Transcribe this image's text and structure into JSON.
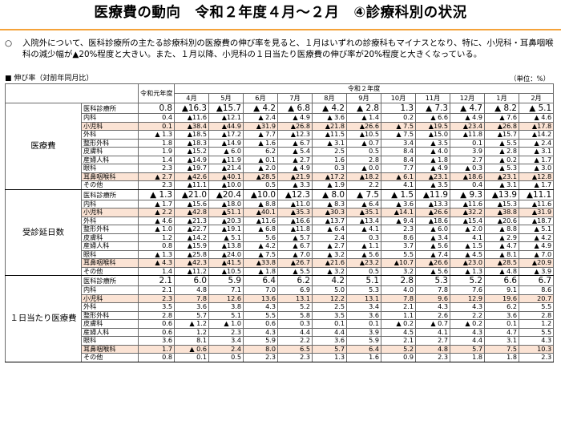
{
  "title": "医療費の動向　令和２年度４月～２月　④診療科別の状況",
  "note": {
    "bullet": "○",
    "text": "入院外について、医科診療所の主たる診療科別の医療費の伸び率を見ると、１月はいずれの診療科もマイナスとなり、特に、小児科・耳鼻咽喉科の減少幅が▲20%程度と大きい。また、１月以降、小児科の１日当たり医療費の伸び率が20%程度と大きくなっている。"
  },
  "caption": "■ 伸び率（対前年同月比）",
  "unit": "（単位：%）",
  "header": {
    "prev_year": "令和元年度",
    "cur_year": "令和２年度",
    "months": [
      "4月",
      "5月",
      "6月",
      "7月",
      "8月",
      "9月",
      "10月",
      "11月",
      "12月",
      "1月",
      "2月"
    ]
  },
  "groups": [
    {
      "label": "医療費",
      "rows": [
        {
          "name": "医科診療所",
          "total": true,
          "hl": false,
          "vals": [
            "0.8",
            "▲16.3",
            "▲15.7",
            "▲ 4.2",
            "▲ 6.8",
            "▲ 4.2",
            "▲ 2.8",
            "1.3",
            "▲ 7.3",
            "▲ 4.7",
            "▲ 8.2",
            "▲ 5.1"
          ]
        },
        {
          "name": "内科",
          "total": false,
          "hl": false,
          "vals": [
            "0.4",
            "▲11.6",
            "▲12.1",
            "▲ 2.4",
            "▲ 4.9",
            "▲ 3.6",
            "▲ 1.4",
            "0.2",
            "▲ 6.6",
            "▲ 4.9",
            "▲ 7.6",
            "▲ 4.6"
          ]
        },
        {
          "name": "小児科",
          "total": false,
          "hl": true,
          "vals": [
            "0.1",
            "▲38.4",
            "▲44.9",
            "▲31.9",
            "▲26.8",
            "▲21.8",
            "▲26.6",
            "▲ 7.5",
            "▲19.5",
            "▲23.4",
            "▲26.8",
            "▲17.8"
          ]
        },
        {
          "name": "外科",
          "total": false,
          "hl": false,
          "vals": [
            "▲ 1.3",
            "▲18.5",
            "▲17.2",
            "▲ 7.7",
            "▲12.3",
            "▲11.5",
            "▲10.5",
            "▲ 7.5",
            "▲15.0",
            "▲11.8",
            "▲15.7",
            "▲14.2"
          ]
        },
        {
          "name": "整形外科",
          "total": false,
          "hl": false,
          "vals": [
            "1.8",
            "▲18.3",
            "▲14.9",
            "▲ 1.6",
            "▲ 6.7",
            "▲ 3.1",
            "▲ 0.7",
            "3.4",
            "▲ 3.5",
            "0.1",
            "▲ 5.5",
            "▲ 2.4"
          ]
        },
        {
          "name": "皮膚科",
          "total": false,
          "hl": false,
          "vals": [
            "1.9",
            "▲15.2",
            "▲ 6.0",
            "6.2",
            "▲ 5.4",
            "2.5",
            "0.5",
            "8.4",
            "▲ 4.0",
            "3.9",
            "▲ 2.8",
            "▲ 3.1"
          ]
        },
        {
          "name": "産婦人科",
          "total": false,
          "hl": false,
          "vals": [
            "1.4",
            "▲14.9",
            "▲11.9",
            "▲ 0.1",
            "▲ 2.7",
            "1.6",
            "2.8",
            "8.4",
            "▲ 1.8",
            "2.7",
            "▲ 0.2",
            "▲ 1.7"
          ]
        },
        {
          "name": "眼科",
          "total": false,
          "hl": false,
          "vals": [
            "2.3",
            "▲19.7",
            "▲21.4",
            "▲ 2.0",
            "▲ 4.9",
            "0.3",
            "▲ 0.0",
            "7.7",
            "▲ 4.9",
            "▲ 0.3",
            "▲ 5.3",
            "▲ 3.0"
          ]
        },
        {
          "name": "耳鼻咽喉科",
          "total": false,
          "hl": true,
          "vals": [
            "▲ 2.7",
            "▲42.6",
            "▲40.1",
            "▲28.5",
            "▲21.9",
            "▲17.2",
            "▲18.2",
            "▲ 6.1",
            "▲23.1",
            "▲18.6",
            "▲23.1",
            "▲12.8"
          ]
        },
        {
          "name": "その他",
          "total": false,
          "hl": false,
          "vals": [
            "2.3",
            "▲11.1",
            "▲10.0",
            "0.5",
            "▲ 3.3",
            "▲ 1.9",
            "2.2",
            "4.1",
            "▲ 3.5",
            "0.4",
            "▲ 3.1",
            "▲ 1.7"
          ]
        }
      ]
    },
    {
      "label": "受診延日数",
      "rows": [
        {
          "name": "医科診療所",
          "total": true,
          "hl": false,
          "vals": [
            "▲ 1.3",
            "▲21.0",
            "▲20.4",
            "▲10.0",
            "▲12.3",
            "▲ 8.0",
            "▲ 7.5",
            "▲ 1.5",
            "▲11.9",
            "▲ 9.3",
            "▲13.9",
            "▲11.1"
          ]
        },
        {
          "name": "内科",
          "total": false,
          "hl": false,
          "vals": [
            "▲ 1.7",
            "▲15.6",
            "▲18.0",
            "▲ 8.8",
            "▲11.0",
            "▲ 8.3",
            "▲ 6.4",
            "▲ 3.6",
            "▲13.3",
            "▲11.6",
            "▲15.3",
            "▲11.6"
          ]
        },
        {
          "name": "小児科",
          "total": false,
          "hl": true,
          "vals": [
            "▲ 2.2",
            "▲42.8",
            "▲51.1",
            "▲40.1",
            "▲35.3",
            "▲30.3",
            "▲35.1",
            "▲14.1",
            "▲26.6",
            "▲32.2",
            "▲38.8",
            "▲31.9"
          ]
        },
        {
          "name": "外科",
          "total": false,
          "hl": false,
          "vals": [
            "▲ 4.6",
            "▲21.3",
            "▲20.3",
            "▲11.6",
            "▲16.6",
            "▲13.7",
            "▲13.4",
            "▲ 9.4",
            "▲18.6",
            "▲15.4",
            "▲20.6",
            "▲18.7"
          ]
        },
        {
          "name": "整形外科",
          "total": false,
          "hl": false,
          "vals": [
            "▲ 1.0",
            "▲22.7",
            "▲19.1",
            "▲ 6.8",
            "▲11.8",
            "▲ 6.4",
            "▲ 4.1",
            "2.3",
            "▲ 6.0",
            "▲ 2.0",
            "▲ 8.8",
            "▲ 5.1"
          ]
        },
        {
          "name": "皮膚科",
          "total": false,
          "hl": false,
          "vals": [
            "1.2",
            "▲14.2",
            "▲ 5.1",
            "5.6",
            "▲ 5.7",
            "2.4",
            "0.3",
            "8.6",
            "▲ 3.4",
            "4.1",
            "▲ 2.9",
            "▲ 4.2"
          ]
        },
        {
          "name": "産婦人科",
          "total": false,
          "hl": false,
          "vals": [
            "0.8",
            "▲15.9",
            "▲13.8",
            "▲ 4.2",
            "▲ 6.7",
            "▲ 2.7",
            "▲ 1.1",
            "3.7",
            "▲ 5.6",
            "▲ 1.5",
            "▲ 4.7",
            "▲ 4.9"
          ]
        },
        {
          "name": "眼科",
          "total": false,
          "hl": false,
          "vals": [
            "▲ 1.3",
            "▲25.8",
            "▲24.0",
            "▲ 7.5",
            "▲ 7.0",
            "▲ 3.2",
            "▲ 5.6",
            "5.5",
            "▲ 7.4",
            "▲ 4.5",
            "▲ 8.1",
            "▲ 7.0"
          ]
        },
        {
          "name": "耳鼻咽喉科",
          "total": false,
          "hl": true,
          "vals": [
            "▲ 4.3",
            "▲42.3",
            "▲41.5",
            "▲33.8",
            "▲26.7",
            "▲21.6",
            "▲23.2",
            "▲10.7",
            "▲26.6",
            "▲23.0",
            "▲28.5",
            "▲20.9"
          ]
        },
        {
          "name": "その他",
          "total": false,
          "hl": false,
          "vals": [
            "1.4",
            "▲11.2",
            "▲10.5",
            "▲ 1.8",
            "▲ 5.5",
            "▲ 3.2",
            "0.5",
            "3.2",
            "▲ 5.6",
            "▲ 1.3",
            "▲ 4.8",
            "▲ 3.9"
          ]
        }
      ]
    },
    {
      "label": "１日当たり医療費",
      "rows": [
        {
          "name": "医科診療所",
          "total": true,
          "hl": false,
          "vals": [
            "2.1",
            "6.0",
            "5.9",
            "6.4",
            "6.2",
            "4.2",
            "5.1",
            "2.8",
            "5.3",
            "5.2",
            "6.6",
            "6.7"
          ]
        },
        {
          "name": "内科",
          "total": false,
          "hl": false,
          "vals": [
            "2.1",
            "4.8",
            "7.1",
            "7.0",
            "6.9",
            "5.0",
            "5.3",
            "4.0",
            "7.8",
            "7.6",
            "9.1",
            "8.6"
          ]
        },
        {
          "name": "小児科",
          "total": false,
          "hl": true,
          "vals": [
            "2.3",
            "7.8",
            "12.6",
            "13.6",
            "13.1",
            "12.2",
            "13.1",
            "7.8",
            "9.6",
            "12.9",
            "19.6",
            "20.7"
          ]
        },
        {
          "name": "外科",
          "total": false,
          "hl": false,
          "vals": [
            "3.5",
            "3.6",
            "3.8",
            "4.3",
            "5.2",
            "2.5",
            "3.4",
            "2.1",
            "4.3",
            "4.3",
            "6.2",
            "5.5"
          ]
        },
        {
          "name": "整形外科",
          "total": false,
          "hl": false,
          "vals": [
            "2.8",
            "5.7",
            "5.1",
            "5.5",
            "5.8",
            "3.5",
            "3.6",
            "1.1",
            "2.6",
            "2.2",
            "3.6",
            "2.8"
          ]
        },
        {
          "name": "皮膚科",
          "total": false,
          "hl": false,
          "vals": [
            "0.6",
            "▲ 1.2",
            "▲ 1.0",
            "0.6",
            "0.3",
            "0.1",
            "0.1",
            "▲ 0.2",
            "▲ 0.7",
            "▲ 0.2",
            "0.1",
            "1.2"
          ]
        },
        {
          "name": "産婦人科",
          "total": false,
          "hl": false,
          "vals": [
            "0.6",
            "1.2",
            "2.3",
            "4.3",
            "4.4",
            "4.4",
            "3.9",
            "4.5",
            "4.1",
            "4.3",
            "4.7",
            "5.5"
          ]
        },
        {
          "name": "眼科",
          "total": false,
          "hl": false,
          "vals": [
            "3.6",
            "8.1",
            "3.4",
            "5.9",
            "2.2",
            "3.6",
            "5.9",
            "2.1",
            "2.7",
            "4.4",
            "3.1",
            "4.3"
          ]
        },
        {
          "name": "耳鼻咽喉科",
          "total": false,
          "hl": true,
          "vals": [
            "1.7",
            "▲ 0.6",
            "2.4",
            "8.0",
            "6.5",
            "5.7",
            "6.4",
            "5.2",
            "4.8",
            "5.7",
            "7.5",
            "10.3"
          ]
        },
        {
          "name": "その他",
          "total": false,
          "hl": false,
          "vals": [
            "0.8",
            "0.1",
            "0.5",
            "2.3",
            "2.3",
            "1.3",
            "1.6",
            "0.9",
            "2.3",
            "1.8",
            "1.8",
            "2.3"
          ]
        }
      ]
    }
  ]
}
